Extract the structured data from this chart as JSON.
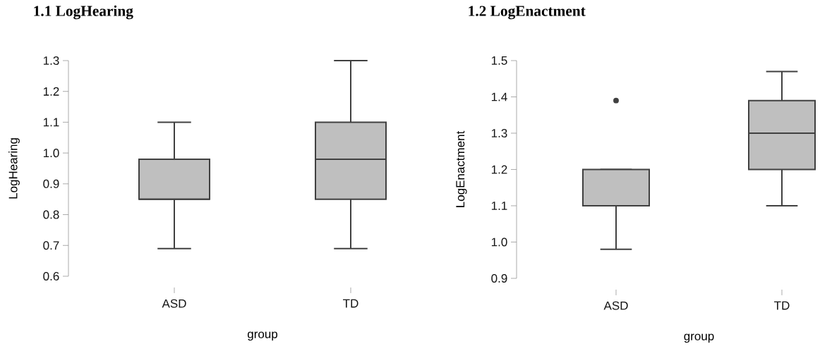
{
  "chart_data": [
    {
      "type": "box",
      "title": "1.1 LogHearing",
      "xlabel": "group",
      "ylabel": "LogHearing",
      "categories": [
        "ASD",
        "TD"
      ],
      "color": "#bfbfbf",
      "boxes": [
        {
          "low": 0.69,
          "q1": 0.85,
          "median": 0.85,
          "q3": 0.98,
          "high": 1.1
        },
        {
          "low": 0.69,
          "q1": 0.85,
          "median": 0.98,
          "q3": 1.1,
          "high": 1.3
        }
      ],
      "ylim": [
        0.6,
        1.3
      ],
      "yticks": [
        0.6,
        0.7,
        0.8,
        0.9,
        {
          "value": 1.0,
          "label": "1.0"
        },
        1.1,
        1.2,
        1.3
      ]
    },
    {
      "type": "box",
      "title": "1.2 LogEnactment",
      "xlabel": "group",
      "ylabel": "LogEnactment",
      "categories": [
        "ASD",
        "TD"
      ],
      "color": "#bfbfbf",
      "boxes": [
        {
          "low": 0.98,
          "q1": 1.1,
          "median": 1.1,
          "q3": 1.2,
          "high": 1.2,
          "outliers": [
            1.39
          ]
        },
        {
          "low": 1.1,
          "q1": 1.2,
          "median": 1.3,
          "q3": 1.39,
          "high": 1.47
        }
      ],
      "ylim": [
        0.9,
        1.5
      ],
      "yticks": [
        0.9,
        {
          "value": 1.0,
          "label": "1.0"
        },
        1.1,
        1.2,
        1.3,
        1.4,
        1.5
      ]
    }
  ]
}
